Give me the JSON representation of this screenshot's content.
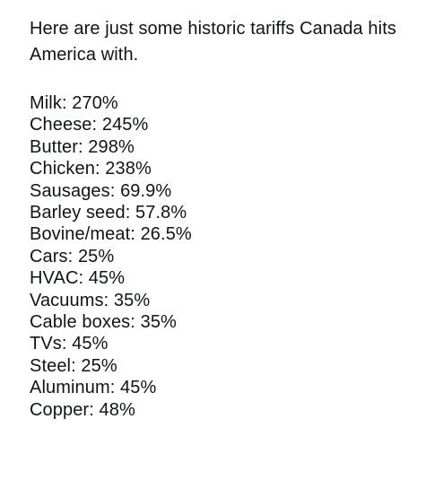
{
  "post": {
    "text_line_1": "Here are just some historic tariffs Canada hits",
    "text_line_2": "America with.",
    "tariffs": [
      "Milk: 270%",
      "Cheese: 245%",
      "Butter: 298%",
      "Chicken: 238%",
      "Sausages: 69.9%",
      "Barley seed: 57.8%",
      "Bovine/meat: 26.5%",
      "Cars: 25%",
      "HVAC: 45%",
      "Vacuums: 35%",
      "Cable boxes: 35%",
      "TVs: 45%",
      "Steel: 25%",
      "Aluminum: 45%",
      "Copper: 48%"
    ]
  },
  "colors": {
    "background": "#ffffff",
    "text": "#0f1419"
  }
}
